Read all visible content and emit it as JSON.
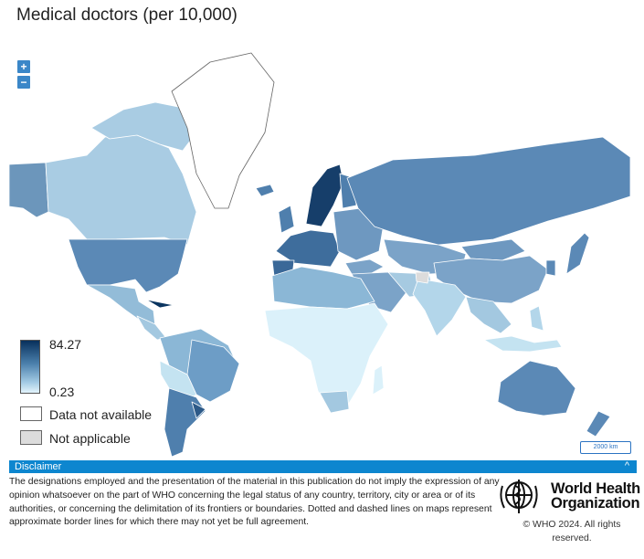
{
  "title": "Medical doctors (per 10,000)",
  "zoom": {
    "in_label": "+",
    "out_label": "−"
  },
  "legend": {
    "max": "84.27",
    "min": "0.23",
    "no_data_label": "Data not available",
    "not_applicable_label": "Not applicable",
    "colors": {
      "high": "#08305c",
      "mid": "#4d82ae",
      "low": "#e3f4fc",
      "no_data": "#ffffff",
      "not_applicable": "#dcdcdc"
    }
  },
  "scale_label": "2000 km",
  "disclaimer": {
    "heading": "Disclaimer",
    "toggle": "^",
    "text": "The designations employed and the presentation of the material in this publication do not imply the expression of any opinion whatsoever on the part of WHO concerning the legal status of any country, territory, city or area or of its authorities, or concerning the delimitation of its frontiers or boundaries. Dotted and dashed lines on maps represent approximate border lines for which there may not yet be full agreement."
  },
  "who": {
    "name_line1": "World Health",
    "name_line2": "Organization",
    "copyright": "© WHO 2024. All rights reserved."
  },
  "colors": {
    "accent": "#0d86cf",
    "ocean": "#ffffff",
    "border": "#ffffff"
  }
}
